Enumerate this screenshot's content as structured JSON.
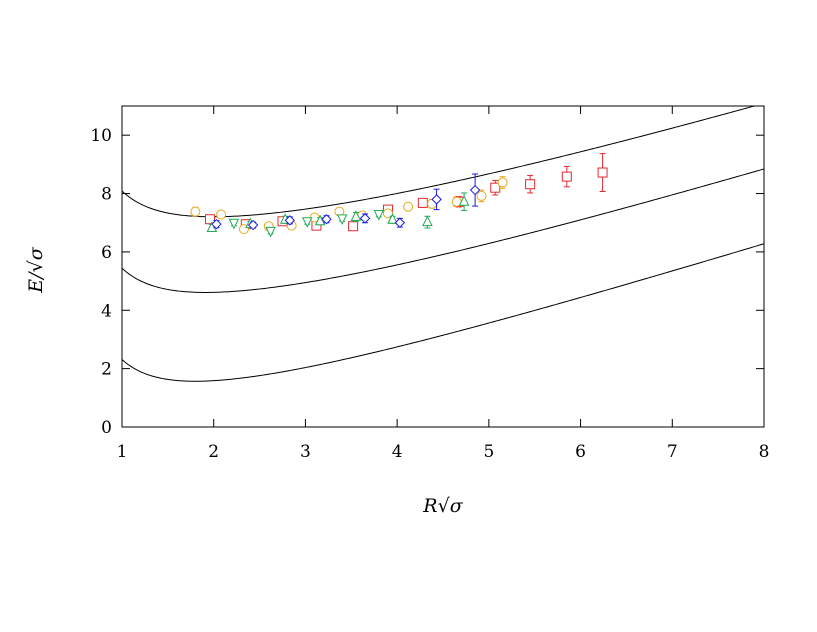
{
  "chart_data": {
    "type": "scatter",
    "xlabel": "R√σ",
    "ylabel": "E/√σ",
    "xlim": [
      1,
      8
    ],
    "ylim": [
      0,
      11
    ],
    "x_ticks": [
      "1",
      "2",
      "3",
      "4",
      "5",
      "6",
      "7",
      "8"
    ],
    "y_ticks": [
      "0",
      "2",
      "4",
      "6",
      "8",
      "10"
    ],
    "grid": false,
    "legend": "none",
    "curves": [
      {
        "a": 0.15,
        "b": 1.5708,
        "k": 1.16
      },
      {
        "a": 0.42,
        "b": 1.5708,
        "k": 1.32
      },
      {
        "a": 0.73,
        "b": 1.5708,
        "k": 1.48
      }
    ],
    "series": [
      {
        "marker": "square",
        "color": "#e8282f",
        "points": [
          {
            "x": 1.96,
            "y": 7.12,
            "err": 0.12
          },
          {
            "x": 2.35,
            "y": 6.95,
            "err": 0.1
          },
          {
            "x": 2.75,
            "y": 7.05,
            "err": 0.1
          },
          {
            "x": 3.12,
            "y": 6.9,
            "err": 0.1
          },
          {
            "x": 3.52,
            "y": 6.88,
            "err": 0.1
          },
          {
            "x": 3.9,
            "y": 7.45,
            "err": 0.12
          },
          {
            "x": 4.28,
            "y": 7.68,
            "err": 0.15
          },
          {
            "x": 4.67,
            "y": 7.72,
            "err": 0.18
          },
          {
            "x": 5.07,
            "y": 8.2,
            "err": 0.25
          },
          {
            "x": 5.45,
            "y": 8.32,
            "err": 0.3
          },
          {
            "x": 5.85,
            "y": 8.58,
            "err": 0.35
          },
          {
            "x": 6.24,
            "y": 8.72,
            "err": 0.65
          }
        ]
      },
      {
        "marker": "circle",
        "color": "#e8a820",
        "points": [
          {
            "x": 1.8,
            "y": 7.38,
            "err": 0.15
          },
          {
            "x": 2.08,
            "y": 7.28,
            "err": 0.1
          },
          {
            "x": 2.33,
            "y": 6.78,
            "err": 0.1
          },
          {
            "x": 2.6,
            "y": 6.88,
            "err": 0.1
          },
          {
            "x": 2.85,
            "y": 6.9,
            "err": 0.1
          },
          {
            "x": 3.1,
            "y": 7.18,
            "err": 0.1
          },
          {
            "x": 3.37,
            "y": 7.38,
            "err": 0.12
          },
          {
            "x": 3.62,
            "y": 7.25,
            "err": 0.12
          },
          {
            "x": 3.9,
            "y": 7.32,
            "err": 0.12
          },
          {
            "x": 4.12,
            "y": 7.55,
            "err": 0.1
          },
          {
            "x": 4.38,
            "y": 7.65,
            "err": 0.15
          },
          {
            "x": 4.65,
            "y": 7.72,
            "err": 0.15
          },
          {
            "x": 4.92,
            "y": 7.92,
            "err": 0.2
          },
          {
            "x": 5.15,
            "y": 8.38,
            "err": 0.2
          }
        ]
      },
      {
        "marker": "triangle-up",
        "color": "#22aa55",
        "points": [
          {
            "x": 1.98,
            "y": 6.82,
            "err": 0.12
          },
          {
            "x": 2.4,
            "y": 6.95,
            "err": 0.1
          },
          {
            "x": 2.78,
            "y": 7.1,
            "err": 0.12
          },
          {
            "x": 3.16,
            "y": 7.05,
            "err": 0.12
          },
          {
            "x": 3.55,
            "y": 7.2,
            "err": 0.15
          },
          {
            "x": 3.95,
            "y": 7.1,
            "err": 0.12
          },
          {
            "x": 4.33,
            "y": 7.02,
            "err": 0.2
          },
          {
            "x": 4.73,
            "y": 7.72,
            "err": 0.3
          }
        ]
      },
      {
        "marker": "triangle-down",
        "color": "#22aa55",
        "points": [
          {
            "x": 2.22,
            "y": 7.0,
            "err": 0.1
          },
          {
            "x": 2.62,
            "y": 6.72,
            "err": 0.1
          },
          {
            "x": 3.02,
            "y": 7.05,
            "err": 0.1
          },
          {
            "x": 3.4,
            "y": 7.15,
            "err": 0.1
          },
          {
            "x": 3.8,
            "y": 7.3,
            "err": 0.1
          }
        ]
      },
      {
        "marker": "diamond",
        "color": "#1a1ae6",
        "points": [
          {
            "x": 2.03,
            "y": 6.95,
            "err": 0.12
          },
          {
            "x": 2.43,
            "y": 6.92,
            "err": 0.1
          },
          {
            "x": 2.83,
            "y": 7.08,
            "err": 0.12
          },
          {
            "x": 3.23,
            "y": 7.12,
            "err": 0.12
          },
          {
            "x": 3.65,
            "y": 7.15,
            "err": 0.15
          },
          {
            "x": 4.03,
            "y": 7.0,
            "err": 0.15
          },
          {
            "x": 4.43,
            "y": 7.8,
            "err": 0.35
          },
          {
            "x": 4.85,
            "y": 8.12,
            "err": 0.55
          }
        ]
      }
    ]
  }
}
